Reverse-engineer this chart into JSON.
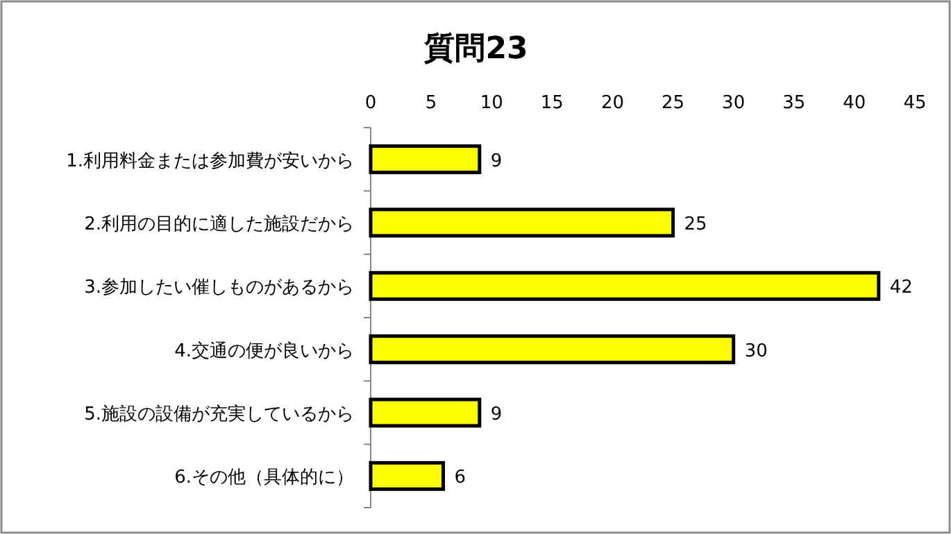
{
  "chart_data": {
    "type": "bar",
    "orientation": "horizontal",
    "title": "質問23",
    "categories": [
      "1.利用料金または参加費が安いから",
      "2.利用の目的に適した施設だから",
      "3.参加したい催しものがあるから",
      "4.交通の便が良いから",
      "5.施設の設備が充実しているから",
      "6.その他（具体的に）"
    ],
    "values": [
      9,
      25,
      42,
      30,
      9,
      6
    ],
    "color": "#ffff00",
    "xlim": [
      0,
      45
    ],
    "xticks": [
      0,
      5,
      10,
      15,
      20,
      25,
      30,
      35,
      40,
      45
    ],
    "data_labels": true
  }
}
